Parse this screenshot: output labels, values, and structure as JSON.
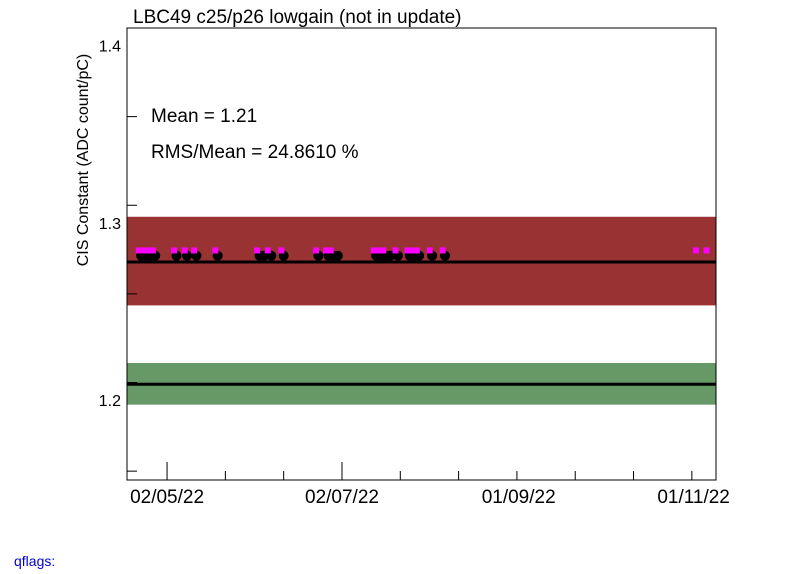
{
  "chart_data": {
    "type": "scatter",
    "title": "LBC49 c25/p26 lowgain (not in update)",
    "ylabel": "CIS Constant (ADC count/pC)",
    "xlabel": "",
    "ylim": [
      1.155,
      1.41
    ],
    "xlim": [
      0,
      100
    ],
    "y_ticks": [
      {
        "value": 1.2,
        "label": "1.2"
      },
      {
        "value": 1.3,
        "label": "1.3"
      },
      {
        "value": 1.4,
        "label": "1.4"
      }
    ],
    "x_ticks": [
      {
        "value": 6.8,
        "label": "02/05/22"
      },
      {
        "value": 36.5,
        "label": "02/07/22"
      },
      {
        "value": 66.5,
        "label": "01/09/22"
      },
      {
        "value": 96.2,
        "label": "01/11/22"
      }
    ],
    "annotations": [
      "Mean = 1.21",
      "RMS/Mean = 24.8610 %"
    ],
    "bands": [
      {
        "y_low": 1.2535,
        "y_high": 1.3035,
        "color": "#993333"
      },
      {
        "y_low": 1.1975,
        "y_high": 1.221,
        "color": "#669966"
      }
    ],
    "lines": [
      {
        "y": 1.278,
        "color": "#000000"
      },
      {
        "y": 1.209,
        "color": "#000000"
      }
    ],
    "series": [
      {
        "marker_color": "#000000",
        "marker": "circle",
        "points": [
          {
            "x": 2.4,
            "y": 1.2815
          },
          {
            "x": 3.2,
            "y": 1.2815
          },
          {
            "x": 4.0,
            "y": 1.2815
          },
          {
            "x": 4.8,
            "y": 1.2815
          },
          {
            "x": 8.4,
            "y": 1.2815
          },
          {
            "x": 10.2,
            "y": 1.2815
          },
          {
            "x": 11.8,
            "y": 1.2815
          },
          {
            "x": 15.4,
            "y": 1.2815
          },
          {
            "x": 22.5,
            "y": 1.2815
          },
          {
            "x": 23.3,
            "y": 1.2815
          },
          {
            "x": 24.5,
            "y": 1.2815
          },
          {
            "x": 26.6,
            "y": 1.2815
          },
          {
            "x": 32.5,
            "y": 1.2815
          },
          {
            "x": 34.2,
            "y": 1.2815
          },
          {
            "x": 35.0,
            "y": 1.2815
          },
          {
            "x": 35.8,
            "y": 1.2815
          },
          {
            "x": 42.3,
            "y": 1.2815
          },
          {
            "x": 43.1,
            "y": 1.2815
          },
          {
            "x": 43.9,
            "y": 1.2815
          },
          {
            "x": 44.7,
            "y": 1.2815
          },
          {
            "x": 46.0,
            "y": 1.2815
          },
          {
            "x": 48.0,
            "y": 1.2815
          },
          {
            "x": 48.8,
            "y": 1.2815
          },
          {
            "x": 49.6,
            "y": 1.2815
          },
          {
            "x": 51.8,
            "y": 1.2815
          },
          {
            "x": 54.0,
            "y": 1.2815
          }
        ]
      },
      {
        "marker_color": "#ff00ff",
        "marker": "square",
        "points": [
          {
            "x": 2.0,
            "y": 1.2845
          },
          {
            "x": 2.8,
            "y": 1.2845
          },
          {
            "x": 3.6,
            "y": 1.2845
          },
          {
            "x": 4.4,
            "y": 1.2845
          },
          {
            "x": 8.0,
            "y": 1.2845
          },
          {
            "x": 9.8,
            "y": 1.2845
          },
          {
            "x": 11.4,
            "y": 1.2845
          },
          {
            "x": 15.0,
            "y": 1.2845
          },
          {
            "x": 22.1,
            "y": 1.2845
          },
          {
            "x": 23.9,
            "y": 1.2845
          },
          {
            "x": 26.2,
            "y": 1.2845
          },
          {
            "x": 32.1,
            "y": 1.2845
          },
          {
            "x": 33.8,
            "y": 1.2845
          },
          {
            "x": 34.6,
            "y": 1.2845
          },
          {
            "x": 41.9,
            "y": 1.2845
          },
          {
            "x": 42.7,
            "y": 1.2845
          },
          {
            "x": 43.5,
            "y": 1.2845
          },
          {
            "x": 45.6,
            "y": 1.2845
          },
          {
            "x": 47.6,
            "y": 1.2845
          },
          {
            "x": 48.4,
            "y": 1.2845
          },
          {
            "x": 49.2,
            "y": 1.2845
          },
          {
            "x": 51.4,
            "y": 1.2845
          },
          {
            "x": 53.6,
            "y": 1.2845
          },
          {
            "x": 96.6,
            "y": 1.2845
          },
          {
            "x": 98.4,
            "y": 1.2845
          }
        ]
      }
    ],
    "grid": false,
    "legend": "none"
  },
  "footer": {
    "qflags_label": "qflags:"
  }
}
